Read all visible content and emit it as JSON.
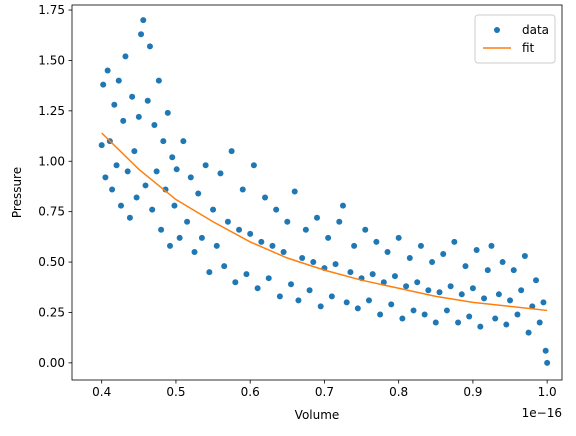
{
  "chart_data": {
    "type": "scatter",
    "title": "",
    "xlabel": "Volume",
    "ylabel": "Pressure",
    "x_offset_label": "1e−16",
    "x_scale": 1e-16,
    "xlim": [
      0.36,
      1.02
    ],
    "ylim": [
      -0.085,
      1.775
    ],
    "x_ticks": [
      0.4,
      0.5,
      0.6,
      0.7,
      0.8,
      0.9,
      1.0
    ],
    "x_tick_labels": [
      "0.4",
      "0.5",
      "0.6",
      "0.7",
      "0.8",
      "0.9",
      "1.0"
    ],
    "y_ticks": [
      0.0,
      0.25,
      0.5,
      0.75,
      1.0,
      1.25,
      1.5,
      1.75
    ],
    "y_tick_labels": [
      "0.00",
      "0.25",
      "0.50",
      "0.75",
      "1.00",
      "1.25",
      "1.50",
      "1.75"
    ],
    "grid": false,
    "legend": {
      "placement": "upper-right",
      "entries": [
        {
          "label": "data",
          "marker": "dot",
          "color": "#1f77b4"
        },
        {
          "label": "fit",
          "marker": "line",
          "color": "#ff7f0e"
        }
      ]
    },
    "series": [
      {
        "name": "data",
        "kind": "scatter",
        "color": "#1f77b4",
        "points": [
          [
            0.4,
            1.08
          ],
          [
            0.402,
            1.38
          ],
          [
            0.405,
            0.92
          ],
          [
            0.408,
            1.45
          ],
          [
            0.411,
            1.1
          ],
          [
            0.414,
            0.86
          ],
          [
            0.417,
            1.28
          ],
          [
            0.42,
            0.98
          ],
          [
            0.423,
            1.4
          ],
          [
            0.426,
            0.78
          ],
          [
            0.429,
            1.2
          ],
          [
            0.432,
            1.52
          ],
          [
            0.435,
            0.95
          ],
          [
            0.438,
            0.72
          ],
          [
            0.441,
            1.32
          ],
          [
            0.444,
            1.05
          ],
          [
            0.447,
            0.82
          ],
          [
            0.45,
            1.22
          ],
          [
            0.453,
            1.63
          ],
          [
            0.456,
            1.7
          ],
          [
            0.459,
            0.88
          ],
          [
            0.462,
            1.3
          ],
          [
            0.465,
            1.57
          ],
          [
            0.468,
            0.76
          ],
          [
            0.471,
            1.18
          ],
          [
            0.474,
            0.95
          ],
          [
            0.477,
            1.4
          ],
          [
            0.48,
            0.66
          ],
          [
            0.483,
            1.1
          ],
          [
            0.486,
            0.86
          ],
          [
            0.489,
            1.24
          ],
          [
            0.492,
            0.58
          ],
          [
            0.495,
            1.02
          ],
          [
            0.498,
            0.78
          ],
          [
            0.501,
            0.96
          ],
          [
            0.505,
            0.62
          ],
          [
            0.51,
            1.1
          ],
          [
            0.515,
            0.7
          ],
          [
            0.52,
            0.92
          ],
          [
            0.525,
            0.55
          ],
          [
            0.53,
            0.84
          ],
          [
            0.535,
            0.62
          ],
          [
            0.54,
            0.98
          ],
          [
            0.545,
            0.45
          ],
          [
            0.55,
            0.76
          ],
          [
            0.555,
            0.58
          ],
          [
            0.56,
            0.94
          ],
          [
            0.565,
            0.48
          ],
          [
            0.57,
            0.7
          ],
          [
            0.575,
            1.05
          ],
          [
            0.58,
            0.4
          ],
          [
            0.585,
            0.66
          ],
          [
            0.59,
            0.86
          ],
          [
            0.595,
            0.44
          ],
          [
            0.6,
            0.64
          ],
          [
            0.605,
            0.98
          ],
          [
            0.61,
            0.37
          ],
          [
            0.615,
            0.6
          ],
          [
            0.62,
            0.82
          ],
          [
            0.625,
            0.42
          ],
          [
            0.63,
            0.58
          ],
          [
            0.635,
            0.76
          ],
          [
            0.64,
            0.33
          ],
          [
            0.645,
            0.55
          ],
          [
            0.65,
            0.7
          ],
          [
            0.655,
            0.39
          ],
          [
            0.66,
            0.85
          ],
          [
            0.665,
            0.31
          ],
          [
            0.67,
            0.52
          ],
          [
            0.675,
            0.66
          ],
          [
            0.68,
            0.36
          ],
          [
            0.685,
            0.5
          ],
          [
            0.69,
            0.72
          ],
          [
            0.695,
            0.28
          ],
          [
            0.7,
            0.47
          ],
          [
            0.705,
            0.62
          ],
          [
            0.71,
            0.33
          ],
          [
            0.715,
            0.49
          ],
          [
            0.72,
            0.7
          ],
          [
            0.725,
            0.78
          ],
          [
            0.73,
            0.3
          ],
          [
            0.735,
            0.45
          ],
          [
            0.74,
            0.58
          ],
          [
            0.745,
            0.27
          ],
          [
            0.75,
            0.42
          ],
          [
            0.755,
            0.66
          ],
          [
            0.76,
            0.31
          ],
          [
            0.765,
            0.44
          ],
          [
            0.77,
            0.6
          ],
          [
            0.775,
            0.24
          ],
          [
            0.78,
            0.4
          ],
          [
            0.785,
            0.55
          ],
          [
            0.79,
            0.29
          ],
          [
            0.795,
            0.43
          ],
          [
            0.8,
            0.62
          ],
          [
            0.805,
            0.22
          ],
          [
            0.81,
            0.38
          ],
          [
            0.815,
            0.52
          ],
          [
            0.82,
            0.26
          ],
          [
            0.825,
            0.4
          ],
          [
            0.83,
            0.58
          ],
          [
            0.835,
            0.24
          ],
          [
            0.84,
            0.36
          ],
          [
            0.845,
            0.5
          ],
          [
            0.85,
            0.2
          ],
          [
            0.855,
            0.35
          ],
          [
            0.86,
            0.54
          ],
          [
            0.865,
            0.26
          ],
          [
            0.87,
            0.38
          ],
          [
            0.875,
            0.6
          ],
          [
            0.88,
            0.2
          ],
          [
            0.885,
            0.34
          ],
          [
            0.89,
            0.48
          ],
          [
            0.895,
            0.23
          ],
          [
            0.9,
            0.37
          ],
          [
            0.905,
            0.56
          ],
          [
            0.91,
            0.18
          ],
          [
            0.915,
            0.32
          ],
          [
            0.92,
            0.46
          ],
          [
            0.925,
            0.58
          ],
          [
            0.93,
            0.22
          ],
          [
            0.935,
            0.34
          ],
          [
            0.94,
            0.5
          ],
          [
            0.945,
            0.19
          ],
          [
            0.95,
            0.31
          ],
          [
            0.955,
            0.46
          ],
          [
            0.96,
            0.24
          ],
          [
            0.965,
            0.36
          ],
          [
            0.97,
            0.53
          ],
          [
            0.975,
            0.15
          ],
          [
            0.98,
            0.28
          ],
          [
            0.985,
            0.41
          ],
          [
            0.99,
            0.2
          ],
          [
            0.995,
            0.3
          ],
          [
            0.998,
            0.06
          ],
          [
            1.0,
            0.0
          ]
        ]
      },
      {
        "name": "fit",
        "kind": "line",
        "color": "#ff7f0e",
        "points": [
          [
            0.4,
            1.14
          ],
          [
            0.45,
            0.96
          ],
          [
            0.5,
            0.81
          ],
          [
            0.55,
            0.7
          ],
          [
            0.6,
            0.6
          ],
          [
            0.65,
            0.52
          ],
          [
            0.7,
            0.46
          ],
          [
            0.75,
            0.41
          ],
          [
            0.8,
            0.37
          ],
          [
            0.85,
            0.33
          ],
          [
            0.9,
            0.3
          ],
          [
            0.95,
            0.28
          ],
          [
            1.0,
            0.26
          ]
        ]
      }
    ]
  }
}
